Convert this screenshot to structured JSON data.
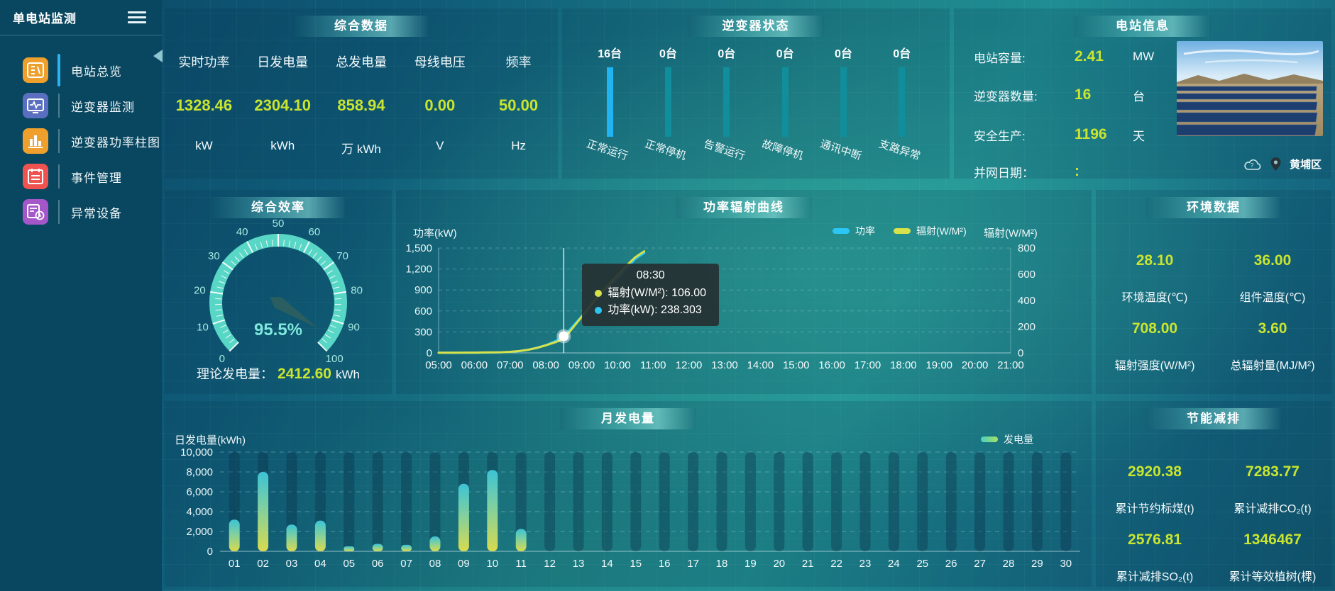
{
  "app": {
    "title": "单电站监测"
  },
  "colors": {
    "value_yellow": "#c9e52f",
    "inverter_bar_active": "#21b4f2",
    "inverter_bar_idle": "#118e9b",
    "line_power": "#2bc6f4",
    "line_radiation": "#d7e14a",
    "gauge_arc": "#58d6c6",
    "monthly_bar_top": "#3cc3d5",
    "monthly_bar_bottom": "#d9da4e",
    "sidebar_active": "#2db4f0"
  },
  "sidebar": {
    "items": [
      {
        "label": "电站总览",
        "icon": "overview-icon",
        "color": "#efa02c",
        "active": true
      },
      {
        "label": "逆变器监测",
        "icon": "inverter-monitor-icon",
        "color": "#5a6fc0",
        "active": false
      },
      {
        "label": "逆变器功率柱图",
        "icon": "power-bars-icon",
        "color": "#efa02c",
        "active": false
      },
      {
        "label": "事件管理",
        "icon": "event-icon",
        "color": "#ef5350",
        "active": false
      },
      {
        "label": "异常设备",
        "icon": "abnormal-device-icon",
        "color": "#a557c9",
        "active": false
      }
    ]
  },
  "panels": {
    "summary": {
      "title": "综合数据",
      "metrics": [
        {
          "label": "实时功率",
          "value": "1328.46",
          "unit": "kW"
        },
        {
          "label": "日发电量",
          "value": "2304.10",
          "unit": "kWh"
        },
        {
          "label": "总发电量",
          "value": "858.94",
          "unit": "万 kWh"
        },
        {
          "label": "母线电压",
          "value": "0.00",
          "unit": "V"
        },
        {
          "label": "频率",
          "value": "50.00",
          "unit": "Hz"
        }
      ]
    },
    "inverter": {
      "title": "逆变器状态"
    },
    "station": {
      "title": "电站信息",
      "rows": [
        {
          "label": "电站容量:",
          "value": "2.41",
          "unit": "MW"
        },
        {
          "label": "逆变器数量:",
          "value": "16",
          "unit": "台"
        },
        {
          "label": "安全生产:",
          "value": "1196",
          "unit": "天"
        },
        {
          "label": "并网日期：",
          "value": ":",
          "unit": ""
        }
      ],
      "location": "黄埔区"
    },
    "efficiency": {
      "title": "综合效率",
      "theory_label": "理论发电量：",
      "theory_value": "2412.60",
      "theory_unit": "kWh"
    },
    "curve": {
      "title": "功率辐射曲线"
    },
    "environment": {
      "title": "环境数据",
      "metrics": [
        {
          "value": "28.10",
          "label": "环境温度(℃)"
        },
        {
          "value": "36.00",
          "label": "组件温度(℃)"
        },
        {
          "value": "708.00",
          "label": "辐射强度(W/M²)"
        },
        {
          "value": "3.60",
          "label": "总辐射量(MJ/M²)"
        }
      ]
    },
    "monthly": {
      "title": "月发电量"
    },
    "saving": {
      "title": "节能减排",
      "metrics": [
        {
          "value": "2920.38",
          "label": "累计节约标煤(t)"
        },
        {
          "value": "7283.77",
          "label": "累计减排CO₂(t)"
        },
        {
          "value": "2576.81",
          "label": "累计减排SO₂(t)"
        },
        {
          "value": "1346467",
          "label": "累计等效植树(棵)"
        }
      ]
    }
  },
  "chart_data": [
    {
      "id": "inverter_status",
      "type": "bar",
      "title": "逆变器状态",
      "categories": [
        "正常运行",
        "正常停机",
        "告警运行",
        "故障停机",
        "通讯中断",
        "支路异常"
      ],
      "values": [
        16,
        0,
        0,
        0,
        0,
        0
      ],
      "unit": "台",
      "count_labels": [
        "16台",
        "0台",
        "0台",
        "0台",
        "0台",
        "0台"
      ],
      "note": "all bars drawn equal height; first status highlighted blue"
    },
    {
      "id": "efficiency_gauge",
      "type": "gauge",
      "title": "综合效率",
      "value": 95.5,
      "min": 0,
      "max": 100,
      "label": "95.5%",
      "tick_labels": [
        "0",
        "10",
        "20",
        "30",
        "40",
        "50",
        "60",
        "70",
        "80",
        "90",
        "100"
      ]
    },
    {
      "id": "power_radiation",
      "type": "line",
      "title": "功率辐射曲线",
      "x_hours": [
        5,
        5.25,
        5.5,
        5.75,
        6,
        6.25,
        6.5,
        6.75,
        7,
        7.25,
        7.5,
        7.75,
        8,
        8.25,
        8.5,
        8.75,
        9,
        9.25,
        9.5,
        9.75,
        10,
        10.25,
        10.5,
        10.75
      ],
      "x_ticks": [
        "05:00",
        "06:00",
        "07:00",
        "08:00",
        "09:00",
        "10:00",
        "11:00",
        "12:00",
        "13:00",
        "14:00",
        "15:00",
        "16:00",
        "17:00",
        "18:00",
        "19:00",
        "20:00",
        "21:00"
      ],
      "x_range": [
        5,
        21
      ],
      "series": [
        {
          "name": "功率",
          "axis": "left",
          "color": "#2bc6f4",
          "values": [
            2,
            2,
            2,
            3,
            3,
            4,
            5,
            7,
            12,
            25,
            45,
            75,
            110,
            165,
            238.3,
            380,
            520,
            680,
            830,
            950,
            1060,
            1200,
            1345,
            1430
          ]
        },
        {
          "name": "辐射(W/M²)",
          "axis": "right",
          "color": "#d7e14a",
          "values": [
            1,
            1,
            1,
            2,
            2,
            3,
            4,
            5,
            8,
            14,
            24,
            38,
            58,
            80,
            106,
            190,
            275,
            360,
            445,
            520,
            590,
            665,
            730,
            775
          ]
        }
      ],
      "left_axis": {
        "label": "功率(kW)",
        "tick_values": [
          0,
          300,
          600,
          900,
          1200,
          1500
        ],
        "tick_labels": [
          "0",
          "300",
          "600",
          "900",
          "1,200",
          "1,500"
        ],
        "max": 1500
      },
      "right_axis": {
        "label": "辐射(W/M²)",
        "tick_values": [
          0,
          200,
          400,
          600,
          800
        ],
        "tick_labels": [
          "0",
          "200",
          "400",
          "600",
          "800"
        ],
        "max": 800
      },
      "legend": [
        {
          "name": "功率",
          "color": "#2bc6f4"
        },
        {
          "name": "辐射(W/M²)",
          "color": "#d7e14a"
        }
      ],
      "tooltip": {
        "title": "08:30",
        "hour": 8.5,
        "marker_power": 238.303,
        "rows": [
          {
            "color": "#d7e14a",
            "label": "辐射(W/M²)",
            "value": "106.00"
          },
          {
            "color": "#2bc6f4",
            "label": "功率(kW)",
            "value": "238.303"
          }
        ]
      }
    },
    {
      "id": "monthly_generation",
      "type": "bar",
      "title": "月发电量",
      "ylabel": "日发电量(kWh)",
      "legend": "发电量",
      "categories": [
        "01",
        "02",
        "03",
        "04",
        "05",
        "06",
        "07",
        "08",
        "09",
        "10",
        "11",
        "12",
        "13",
        "14",
        "15",
        "16",
        "17",
        "18",
        "19",
        "20",
        "21",
        "22",
        "23",
        "24",
        "25",
        "26",
        "27",
        "28",
        "29",
        "30"
      ],
      "values": [
        3200,
        8000,
        2700,
        3100,
        500,
        750,
        650,
        1500,
        6800,
        8200,
        2250,
        0,
        0,
        0,
        0,
        0,
        0,
        0,
        0,
        0,
        0,
        0,
        0,
        0,
        0,
        0,
        0,
        0,
        0,
        0
      ],
      "y_ticks": {
        "tick_values": [
          0,
          2000,
          4000,
          6000,
          8000,
          10000
        ],
        "tick_labels": [
          "0",
          "2,000",
          "4,000",
          "6,000",
          "8,000",
          "10,000"
        ],
        "max": 10000
      }
    }
  ]
}
